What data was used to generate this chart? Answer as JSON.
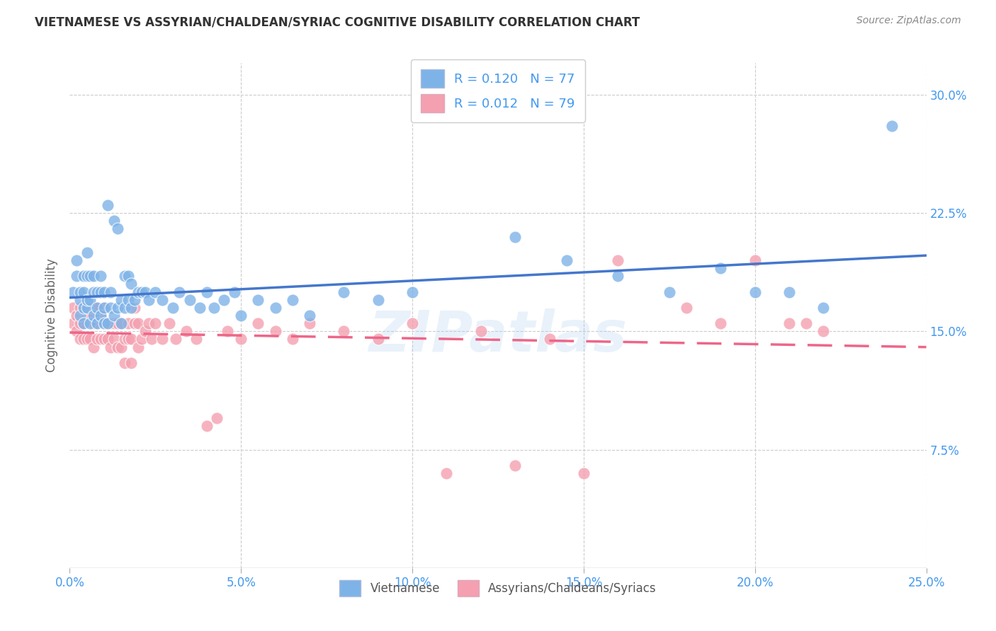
{
  "title": "VIETNAMESE VS ASSYRIAN/CHALDEAN/SYRIAC COGNITIVE DISABILITY CORRELATION CHART",
  "source": "Source: ZipAtlas.com",
  "ylabel": "Cognitive Disability",
  "xlim": [
    0.0,
    0.25
  ],
  "ylim": [
    0.0,
    0.32
  ],
  "xticks": [
    0.0,
    0.05,
    0.1,
    0.15,
    0.2,
    0.25
  ],
  "yticks_right": [
    0.075,
    0.15,
    0.225,
    0.3
  ],
  "ytick_labels_right": [
    "7.5%",
    "15.0%",
    "22.5%",
    "30.0%"
  ],
  "xtick_labels": [
    "0.0%",
    "5.0%",
    "10.0%",
    "15.0%",
    "20.0%",
    "25.0%"
  ],
  "legend_labels": [
    "Vietnamese",
    "Assyrians/Chaldeans/Syriacs"
  ],
  "blue_color": "#7EB3E8",
  "pink_color": "#F4A0B0",
  "blue_line_color": "#4477CC",
  "pink_line_color": "#EE6688",
  "R_vietnamese": 0.12,
  "N_vietnamese": 77,
  "R_assyrian": 0.012,
  "N_assyrian": 79,
  "blue_scatter_x": [
    0.001,
    0.002,
    0.002,
    0.003,
    0.003,
    0.003,
    0.004,
    0.004,
    0.004,
    0.004,
    0.005,
    0.005,
    0.005,
    0.005,
    0.006,
    0.006,
    0.006,
    0.007,
    0.007,
    0.007,
    0.008,
    0.008,
    0.008,
    0.009,
    0.009,
    0.009,
    0.01,
    0.01,
    0.01,
    0.011,
    0.011,
    0.012,
    0.012,
    0.013,
    0.013,
    0.014,
    0.014,
    0.015,
    0.015,
    0.016,
    0.016,
    0.017,
    0.017,
    0.018,
    0.018,
    0.019,
    0.02,
    0.021,
    0.022,
    0.023,
    0.025,
    0.027,
    0.03,
    0.032,
    0.035,
    0.038,
    0.04,
    0.042,
    0.045,
    0.048,
    0.05,
    0.055,
    0.06,
    0.065,
    0.07,
    0.08,
    0.09,
    0.1,
    0.13,
    0.145,
    0.16,
    0.175,
    0.19,
    0.2,
    0.21,
    0.22,
    0.24
  ],
  "blue_scatter_y": [
    0.175,
    0.185,
    0.195,
    0.16,
    0.17,
    0.175,
    0.155,
    0.165,
    0.175,
    0.185,
    0.165,
    0.17,
    0.185,
    0.2,
    0.155,
    0.17,
    0.185,
    0.16,
    0.175,
    0.185,
    0.155,
    0.165,
    0.175,
    0.16,
    0.175,
    0.185,
    0.155,
    0.165,
    0.175,
    0.155,
    0.23,
    0.165,
    0.175,
    0.16,
    0.22,
    0.165,
    0.215,
    0.155,
    0.17,
    0.165,
    0.185,
    0.17,
    0.185,
    0.165,
    0.18,
    0.17,
    0.175,
    0.175,
    0.175,
    0.17,
    0.175,
    0.17,
    0.165,
    0.175,
    0.17,
    0.165,
    0.175,
    0.165,
    0.17,
    0.175,
    0.16,
    0.17,
    0.165,
    0.17,
    0.16,
    0.175,
    0.17,
    0.175,
    0.21,
    0.195,
    0.185,
    0.175,
    0.19,
    0.175,
    0.175,
    0.165,
    0.28
  ],
  "pink_scatter_x": [
    0.001,
    0.001,
    0.002,
    0.002,
    0.003,
    0.003,
    0.003,
    0.004,
    0.004,
    0.004,
    0.005,
    0.005,
    0.005,
    0.006,
    0.006,
    0.007,
    0.007,
    0.007,
    0.008,
    0.008,
    0.008,
    0.009,
    0.009,
    0.01,
    0.01,
    0.01,
    0.011,
    0.011,
    0.012,
    0.012,
    0.013,
    0.013,
    0.014,
    0.014,
    0.015,
    0.015,
    0.016,
    0.016,
    0.017,
    0.017,
    0.018,
    0.018,
    0.019,
    0.019,
    0.02,
    0.02,
    0.021,
    0.022,
    0.023,
    0.024,
    0.025,
    0.027,
    0.029,
    0.031,
    0.034,
    0.037,
    0.04,
    0.043,
    0.046,
    0.05,
    0.055,
    0.06,
    0.065,
    0.07,
    0.08,
    0.09,
    0.1,
    0.12,
    0.14,
    0.16,
    0.18,
    0.19,
    0.2,
    0.21,
    0.215,
    0.22,
    0.11,
    0.13,
    0.15
  ],
  "pink_scatter_y": [
    0.155,
    0.165,
    0.15,
    0.16,
    0.145,
    0.155,
    0.165,
    0.145,
    0.155,
    0.165,
    0.145,
    0.16,
    0.17,
    0.145,
    0.16,
    0.14,
    0.155,
    0.165,
    0.145,
    0.155,
    0.165,
    0.145,
    0.16,
    0.145,
    0.155,
    0.165,
    0.145,
    0.155,
    0.14,
    0.155,
    0.145,
    0.155,
    0.14,
    0.155,
    0.14,
    0.155,
    0.13,
    0.145,
    0.145,
    0.155,
    0.13,
    0.145,
    0.155,
    0.165,
    0.14,
    0.155,
    0.145,
    0.15,
    0.155,
    0.145,
    0.155,
    0.145,
    0.155,
    0.145,
    0.15,
    0.145,
    0.09,
    0.095,
    0.15,
    0.145,
    0.155,
    0.15,
    0.145,
    0.155,
    0.15,
    0.145,
    0.155,
    0.15,
    0.145,
    0.195,
    0.165,
    0.155,
    0.195,
    0.155,
    0.155,
    0.15,
    0.06,
    0.065,
    0.06
  ],
  "watermark": "ZIPatlas",
  "background_color": "#FFFFFF",
  "grid_color": "#CCCCCC",
  "title_color": "#333333",
  "axis_color": "#4499EE",
  "ylabel_color": "#666666"
}
